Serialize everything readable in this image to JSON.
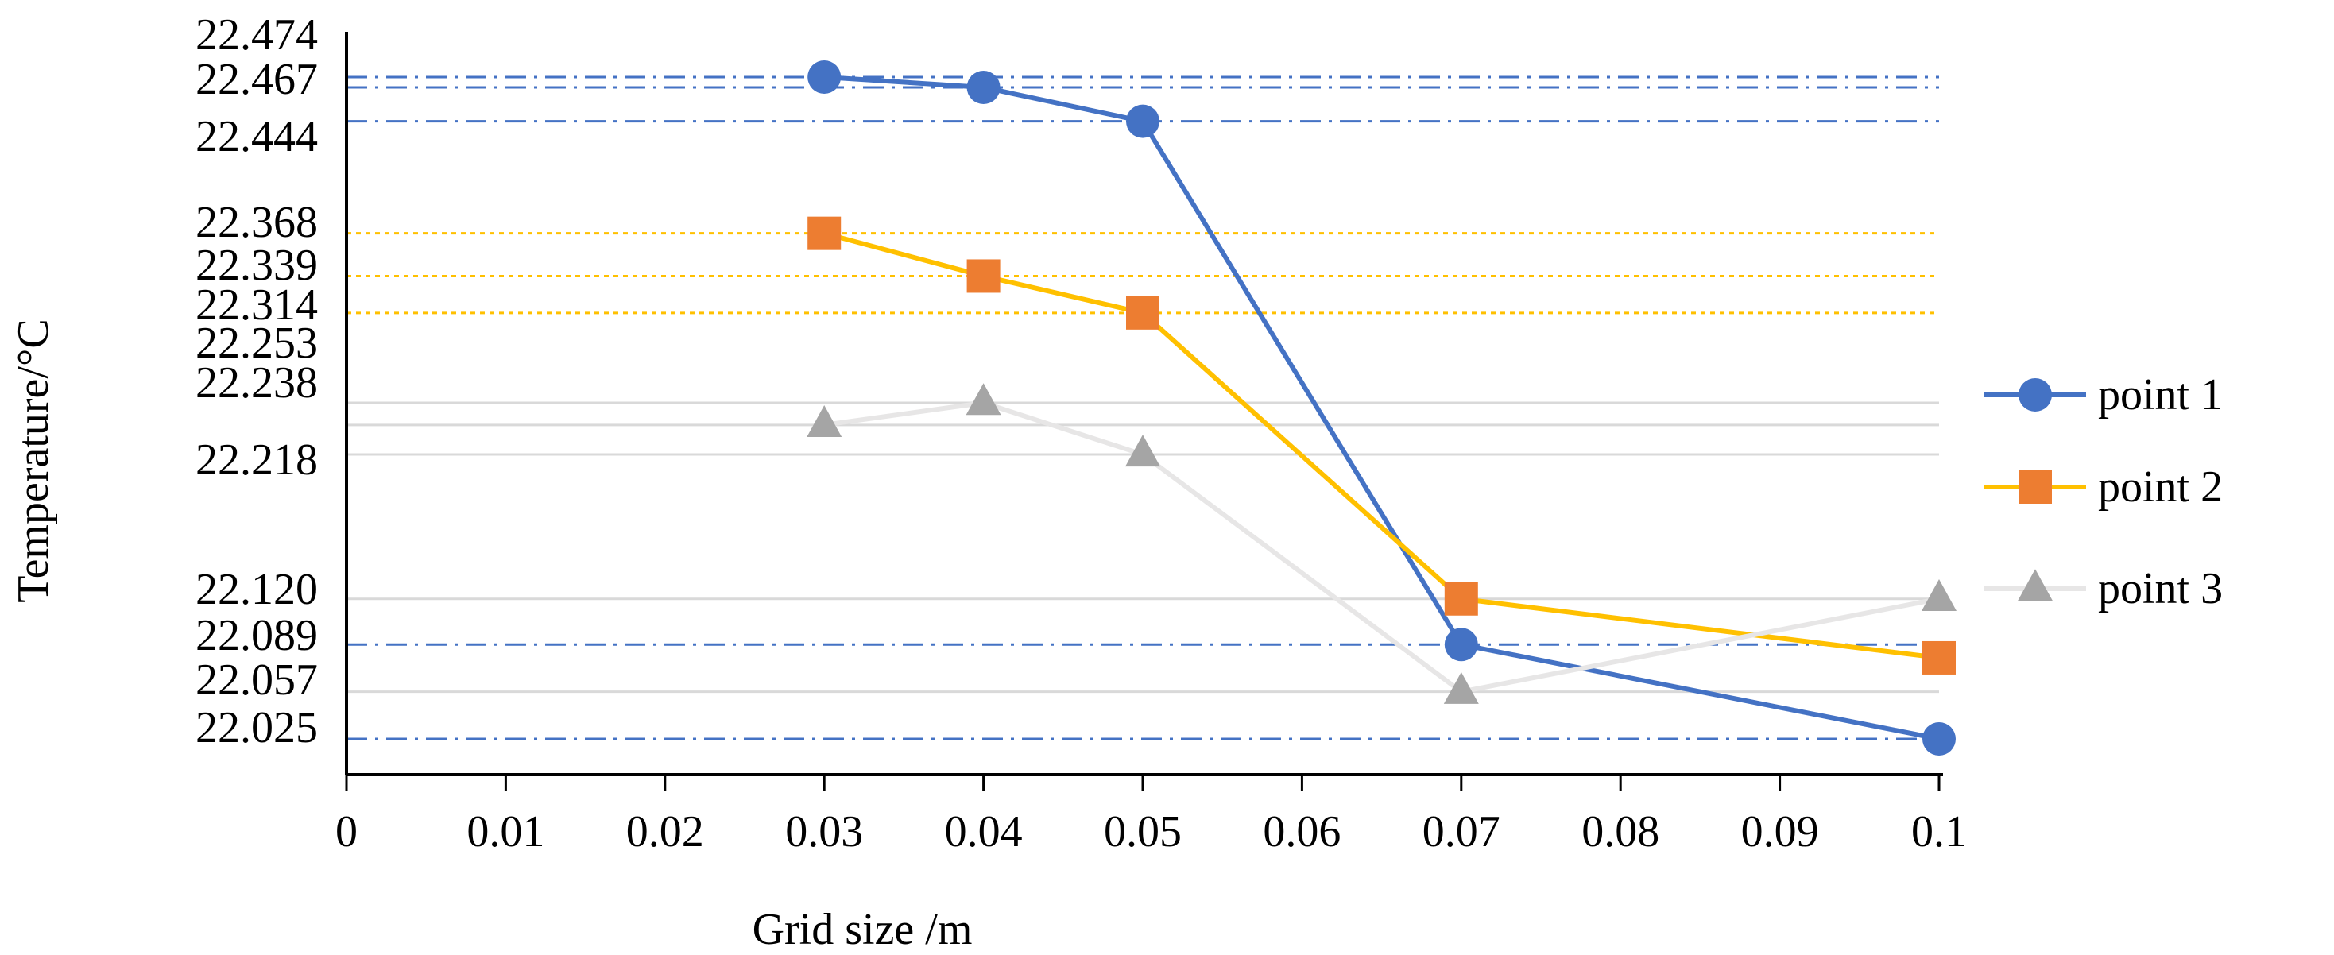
{
  "chart_data": {
    "type": "line",
    "title": "",
    "xlabel": "Grid size /m",
    "ylabel": "Temperature/°C",
    "xlim": [
      0,
      0.1
    ],
    "ylim": [
      22.0,
      22.474
    ],
    "x_ticks": [
      "0",
      "0.01",
      "0.02",
      "0.03",
      "0.04",
      "0.05",
      "0.06",
      "0.07",
      "0.08",
      "0.09",
      "0.1"
    ],
    "y_ticks": [
      {
        "label": "22.474",
        "value": 22.474
      },
      {
        "label": "22.467",
        "value": 22.467
      },
      {
        "label": "22.444",
        "value": 22.444
      },
      {
        "label": "22.368",
        "value": 22.368
      },
      {
        "label": "22.339",
        "value": 22.339
      },
      {
        "label": "22.314",
        "value": 22.314
      },
      {
        "label": "22.253",
        "value": 22.253
      },
      {
        "label": "22.238",
        "value": 22.238
      },
      {
        "label": "22.218",
        "value": 22.218
      },
      {
        "label": "22.120",
        "value": 22.12
      },
      {
        "label": "22.089",
        "value": 22.089
      },
      {
        "label": "22.057",
        "value": 22.057
      },
      {
        "label": "22.025",
        "value": 22.025
      }
    ],
    "reference_lines": [
      {
        "value": 22.474,
        "style": "dashdot",
        "color": "#4472C4"
      },
      {
        "value": 22.467,
        "style": "dashdot",
        "color": "#4472C4"
      },
      {
        "value": 22.444,
        "style": "dashdot",
        "color": "#4472C4"
      },
      {
        "value": 22.368,
        "style": "dotted",
        "color": "#FFC000"
      },
      {
        "value": 22.339,
        "style": "dotted",
        "color": "#FFC000"
      },
      {
        "value": 22.314,
        "style": "dotted",
        "color": "#FFC000"
      },
      {
        "value": 22.253,
        "style": "solid",
        "color": "#D9D9D9"
      },
      {
        "value": 22.238,
        "style": "solid",
        "color": "#D9D9D9"
      },
      {
        "value": 22.218,
        "style": "solid",
        "color": "#D9D9D9"
      },
      {
        "value": 22.12,
        "style": "solid",
        "color": "#D9D9D9"
      },
      {
        "value": 22.089,
        "style": "dashdot",
        "color": "#4472C4"
      },
      {
        "value": 22.057,
        "style": "solid",
        "color": "#D9D9D9"
      },
      {
        "value": 22.025,
        "style": "dashdot",
        "color": "#4472C4"
      }
    ],
    "series": [
      {
        "name": "point 1",
        "color": "#4472C4",
        "marker_color": "#4472C4",
        "marker": "circle",
        "x": [
          0.03,
          0.04,
          0.05,
          0.07,
          0.1
        ],
        "values": [
          22.474,
          22.467,
          22.444,
          22.089,
          22.025
        ]
      },
      {
        "name": "point 2",
        "color": "#FFC000",
        "marker_color": "#ED7D31",
        "marker": "square",
        "x": [
          0.03,
          0.04,
          0.05,
          0.07,
          0.1
        ],
        "values": [
          22.368,
          22.339,
          22.314,
          22.12,
          22.08
        ]
      },
      {
        "name": "point 3",
        "color": "#E7E6E6",
        "marker_color": "#A5A5A5",
        "marker": "triangle",
        "x": [
          0.03,
          0.04,
          0.05,
          0.07,
          0.1
        ],
        "values": [
          22.238,
          22.253,
          22.218,
          22.057,
          22.12
        ]
      }
    ],
    "legend_position": "right",
    "grid": false
  }
}
